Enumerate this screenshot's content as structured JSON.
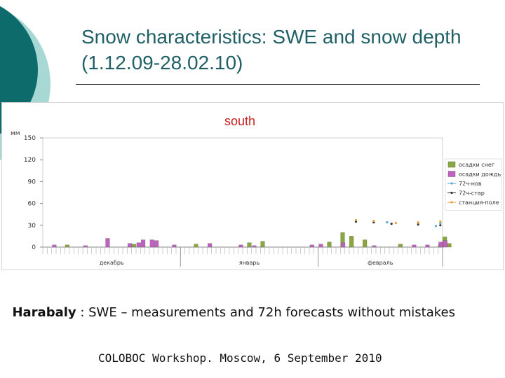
{
  "slide": {
    "title": "Snow characteristics: SWE and snow depth (1.12.09-28.02.10)",
    "caption_bold": "Harabaly",
    "caption_rest": " : SWE – measurements and  72h forecasts without mistakes",
    "footer": "COLOBOC Workshop. Moscow, 6 September 2010",
    "colors": {
      "accent_dark": "#0e6b6b",
      "accent_light": "#a8d8d4"
    }
  },
  "chart_data": {
    "type": "bar",
    "title": "south",
    "ylabel": "мм",
    "xlabel": "",
    "ylim": [
      0,
      150
    ],
    "yticks": [
      0,
      30,
      60,
      90,
      120,
      150
    ],
    "grid": false,
    "legend_position": "right",
    "months": [
      "декабрь",
      "январь",
      "февраль"
    ],
    "days_per_month": [
      31,
      31,
      28
    ],
    "series": [
      {
        "name": "осадки снег",
        "kind": "bar",
        "color": "#8aa83a",
        "points": [
          [
            5,
            3
          ],
          [
            20,
            4
          ],
          [
            34,
            4
          ],
          [
            46,
            6
          ],
          [
            49,
            8
          ],
          [
            64,
            7
          ],
          [
            67,
            20
          ],
          [
            69,
            15
          ],
          [
            72,
            10
          ],
          [
            80,
            4
          ],
          [
            89,
            4
          ],
          [
            90,
            14
          ],
          [
            91,
            5
          ]
        ]
      },
      {
        "name": "осадки дождь",
        "kind": "bar",
        "color": "#c060c0",
        "points": [
          [
            2,
            3
          ],
          [
            9,
            2
          ],
          [
            14,
            12
          ],
          [
            19,
            5
          ],
          [
            21,
            6
          ],
          [
            22,
            10
          ],
          [
            24,
            10
          ],
          [
            25,
            9
          ],
          [
            29,
            3
          ],
          [
            37,
            5
          ],
          [
            44,
            3
          ],
          [
            47,
            2
          ],
          [
            60,
            3
          ],
          [
            62,
            4
          ],
          [
            67,
            6
          ],
          [
            74,
            2
          ],
          [
            83,
            3
          ],
          [
            86,
            3
          ],
          [
            89,
            7
          ],
          [
            90,
            9
          ]
        ]
      },
      {
        "name": "72ч-нов",
        "kind": "point",
        "color": "#55aadd",
        "points": [
          [
            77,
            34
          ],
          [
            88,
            29
          ],
          [
            89,
            33
          ]
        ]
      },
      {
        "name": "72ч-стар",
        "kind": "point",
        "color": "#333333",
        "points": [
          [
            70,
            35
          ],
          [
            74,
            34
          ],
          [
            78,
            32
          ],
          [
            84,
            31
          ],
          [
            89,
            30
          ]
        ]
      },
      {
        "name": "станция-поле",
        "kind": "point",
        "color": "#e8a030",
        "points": [
          [
            70,
            37
          ],
          [
            74,
            36
          ],
          [
            79,
            33
          ],
          [
            84,
            34
          ],
          [
            89,
            35
          ]
        ]
      }
    ]
  }
}
